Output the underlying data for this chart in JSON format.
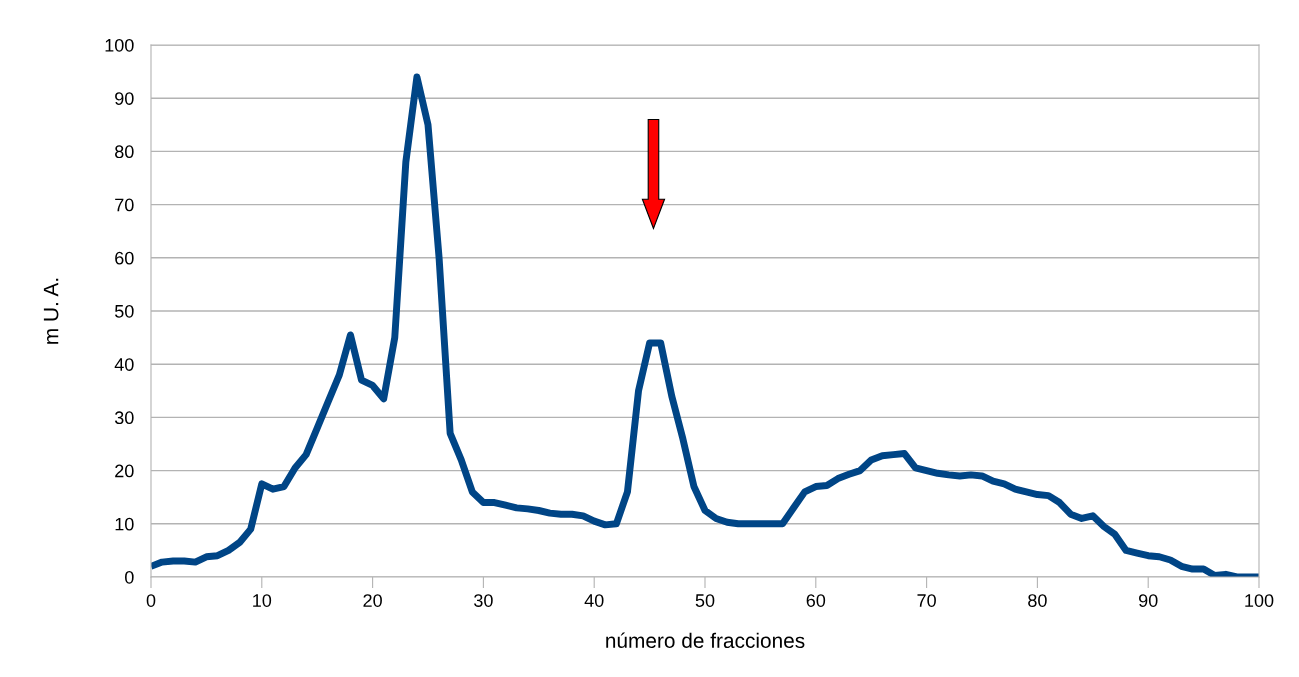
{
  "chart_data": {
    "type": "line",
    "xlabel": "número de fracciones",
    "ylabel": "m U. A.",
    "x": [
      0,
      1,
      2,
      3,
      4,
      5,
      6,
      7,
      8,
      9,
      10,
      11,
      12,
      13,
      14,
      15,
      16,
      17,
      18,
      19,
      20,
      21,
      22,
      23,
      24,
      25,
      26,
      27,
      28,
      29,
      30,
      31,
      32,
      33,
      34,
      35,
      36,
      37,
      38,
      39,
      40,
      41,
      42,
      43,
      44,
      45,
      46,
      47,
      48,
      49,
      50,
      51,
      52,
      53,
      54,
      55,
      56,
      57,
      58,
      59,
      60,
      61,
      62,
      63,
      64,
      65,
      66,
      67,
      68,
      69,
      70,
      71,
      72,
      73,
      74,
      75,
      76,
      77,
      78,
      79,
      80,
      81,
      82,
      83,
      84,
      85,
      86,
      87,
      88,
      89,
      90,
      91,
      92,
      93,
      94,
      95,
      96,
      97,
      98,
      99,
      100
    ],
    "series": [
      {
        "color": "#004586",
        "values": [
          2,
          2.8,
          3,
          3,
          2.8,
          3.8,
          4,
          5,
          6.5,
          9,
          17.5,
          16.5,
          17,
          20.5,
          23,
          28,
          33,
          38,
          45.5,
          37,
          36,
          33.5,
          45,
          78,
          94,
          85,
          60,
          27,
          22,
          16,
          14,
          14,
          13.5,
          13,
          12.8,
          12.5,
          12,
          11.8,
          11.8,
          11.5,
          10.5,
          9.8,
          10,
          16,
          35,
          44,
          44,
          34,
          26,
          17,
          12.5,
          11,
          10.3,
          10,
          10,
          10,
          10,
          10,
          13,
          16,
          17,
          17.2,
          18.5,
          19.3,
          20,
          22,
          22.8,
          23,
          23.2,
          20.5,
          20,
          19.5,
          19.2,
          19,
          19.2,
          19,
          18,
          17.5,
          16.5,
          16,
          15.5,
          15.3,
          14,
          11.8,
          11,
          11.5,
          9.5,
          8,
          5,
          4.5,
          4,
          3.8,
          3.2,
          2,
          1.5,
          1.5,
          0.3,
          0.5,
          0,
          0,
          0
        ]
      }
    ],
    "xlim": [
      0,
      100
    ],
    "xticks": [
      0,
      10,
      20,
      30,
      40,
      50,
      60,
      70,
      80,
      90,
      100
    ],
    "ylim": [
      0,
      100
    ],
    "yticks": [
      0,
      10,
      20,
      30,
      40,
      50,
      60,
      70,
      80,
      90,
      100
    ],
    "grid": "y",
    "legend": false,
    "marker": "none",
    "line_style": "solid"
  }
}
